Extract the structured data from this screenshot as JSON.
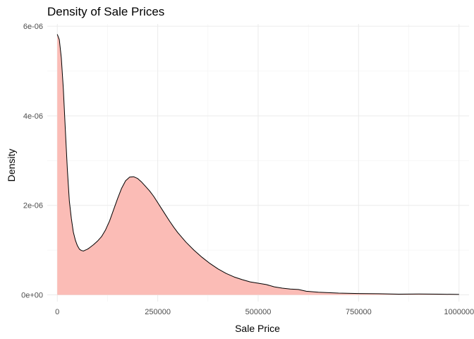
{
  "chart_data": {
    "type": "area",
    "title": "Density of Sale Prices",
    "xlabel": "Sale Price",
    "ylabel": "Density",
    "xlim": [
      -25000,
      1025000
    ],
    "ylim": [
      -1.5e-07,
      6.05e-06
    ],
    "x_ticks": [
      0,
      250000,
      500000,
      750000,
      1000000
    ],
    "x_tick_labels": [
      "0",
      "250000",
      "500000",
      "750000",
      "1000000"
    ],
    "y_ticks": [
      0,
      2e-06,
      4e-06,
      6e-06
    ],
    "y_tick_labels": [
      "0e+00",
      "2e-06",
      "4e-06",
      "6e-06"
    ],
    "grid": true,
    "fill_color": "#fbbcb6",
    "line_color": "#000000",
    "series": [
      {
        "x": [
          0,
          5000,
          10000,
          15000,
          20000,
          25000,
          30000,
          35000,
          40000,
          45000,
          50000,
          55000,
          60000,
          65000,
          70000,
          75000,
          80000,
          90000,
          100000,
          110000,
          120000,
          130000,
          140000,
          150000,
          160000,
          170000,
          180000,
          190000,
          200000,
          210000,
          220000,
          230000,
          240000,
          250000,
          260000,
          270000,
          280000,
          290000,
          300000,
          320000,
          340000,
          360000,
          380000,
          400000,
          420000,
          440000,
          460000,
          480000,
          500000,
          520000,
          540000,
          560000,
          580000,
          600000,
          620000,
          650000,
          700000,
          750000,
          800000,
          850000,
          900000,
          950000,
          1000000
        ],
        "y": [
          5.82e-06,
          5.7e-06,
          5.3e-06,
          4.6e-06,
          3.7e-06,
          2.8e-06,
          2.1e-06,
          1.7e-06,
          1.4e-06,
          1.22e-06,
          1.1e-06,
          1.02e-06,
          9.9e-07,
          9.8e-07,
          1e-06,
          1.02e-06,
          1.05e-06,
          1.12e-06,
          1.2e-06,
          1.3e-06,
          1.45e-06,
          1.65e-06,
          1.9e-06,
          2.15e-06,
          2.38e-06,
          2.55e-06,
          2.63e-06,
          2.64e-06,
          2.6e-06,
          2.52e-06,
          2.42e-06,
          2.32e-06,
          2.2e-06,
          2.06e-06,
          1.92e-06,
          1.78e-06,
          1.64e-06,
          1.51e-06,
          1.39e-06,
          1.18e-06,
          1e-06,
          8.4e-07,
          7e-07,
          5.8e-07,
          4.8e-07,
          4e-07,
          3.4e-07,
          2.9e-07,
          2.6e-07,
          2.3e-07,
          1.8e-07,
          1.5e-07,
          1.3e-07,
          1.2e-07,
          8e-08,
          6e-08,
          4e-08,
          3e-08,
          2.5e-08,
          1.5e-08,
          2e-08,
          1.5e-08,
          1e-08
        ]
      }
    ]
  }
}
